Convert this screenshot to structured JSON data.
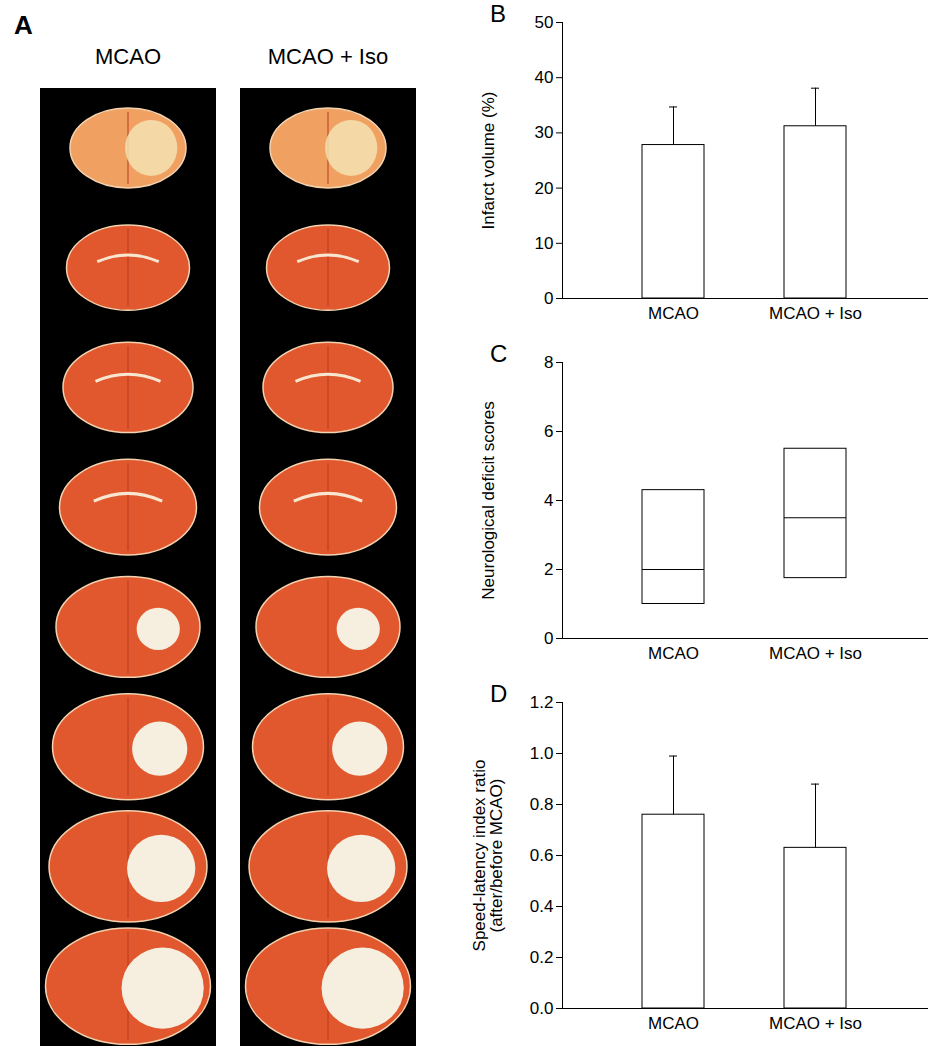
{
  "panel_a": {
    "label": "A",
    "columns": [
      "MCAO",
      "MCAO + Iso"
    ]
  },
  "chart_data": [
    {
      "panel": "B",
      "type": "bar",
      "categories": [
        "MCAO",
        "MCAO + Iso"
      ],
      "values": [
        27.8,
        31.2
      ],
      "errors": [
        6.9,
        6.9
      ],
      "color": "#ffffff",
      "y_label": "Infarct volume (%)",
      "ylim": [
        0,
        50
      ],
      "yticks": [
        0,
        10,
        20,
        30,
        40,
        50
      ]
    },
    {
      "panel": "C",
      "type": "box",
      "categories": [
        "MCAO",
        "MCAO + Iso"
      ],
      "q1": [
        1,
        1.75
      ],
      "median": [
        2,
        3.5
      ],
      "q3": [
        4.3,
        5.5
      ],
      "color": "#ffffff",
      "y_label": "Neurological deficit scores",
      "ylim": [
        0,
        8
      ],
      "yticks": [
        0,
        2,
        4,
        6,
        8
      ]
    },
    {
      "panel": "D",
      "type": "bar",
      "categories": [
        "MCAO",
        "MCAO + Iso"
      ],
      "values": [
        0.76,
        0.63
      ],
      "errors": [
        0.23,
        0.25
      ],
      "color": "#ffffff",
      "y_label": "Speed-latency index ratio (after/before MCAO)",
      "ylim": [
        0,
        1.2
      ],
      "yticks": [
        {
          "value": 0,
          "label": "0.0"
        },
        0.2,
        0.4,
        0.6,
        0.8,
        {
          "value": 1,
          "label": "1.0"
        },
        1.2
      ]
    }
  ]
}
